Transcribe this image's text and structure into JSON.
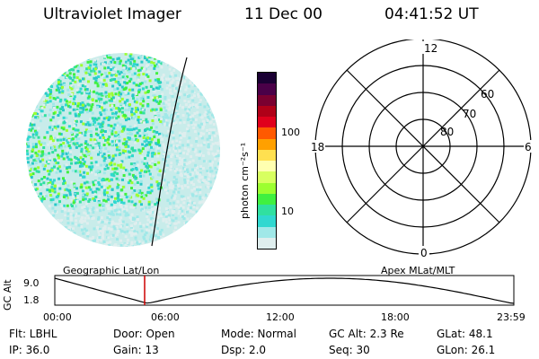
{
  "header": {
    "title": "Ultraviolet Imager",
    "date": "11 Dec 00",
    "time": "04:41:52 UT"
  },
  "colorbar": {
    "unit_label": "photon cm⁻²s⁻¹",
    "ticks": [
      "100",
      "10"
    ],
    "colors": [
      "#1a0033",
      "#4a0048",
      "#7a0030",
      "#b00018",
      "#e0001c",
      "#ff5a00",
      "#ffa000",
      "#ffe050",
      "#ffffb0",
      "#d8ff60",
      "#9cff30",
      "#40f040",
      "#30e0a0",
      "#30d8d0",
      "#a0e8e8",
      "#dfeeee"
    ]
  },
  "polar_plot": {
    "mlt_labels": {
      "top": "12",
      "left": "18",
      "right": "6",
      "bottom": "0"
    },
    "lat_labels": [
      "60",
      "70",
      "80"
    ]
  },
  "image_labels": {
    "left": "Geographic Lat/Lon",
    "right": "Apex MLat/MLT"
  },
  "altitude_plot": {
    "axis_label": "GC Alt",
    "y_max": "9.0",
    "y_min": "1.8",
    "x_ticks": [
      "00:00",
      "06:00",
      "12:00",
      "18:00",
      "23:59"
    ],
    "marker_time": "04:41:52",
    "marker_color": "#cc0000"
  },
  "info": {
    "row1": {
      "flt": "Flt: LBHL",
      "door": "Door: Open",
      "mode": "Mode: Normal",
      "gc_alt": "GC Alt: 2.3 Re",
      "glat": "GLat:  48.1"
    },
    "row2": {
      "ip": "IP: 36.0",
      "gain": "Gain: 13",
      "dsp": "Dsp:    2.0",
      "seq": "Seq: 30",
      "glon": "GLon:  26.1"
    }
  }
}
